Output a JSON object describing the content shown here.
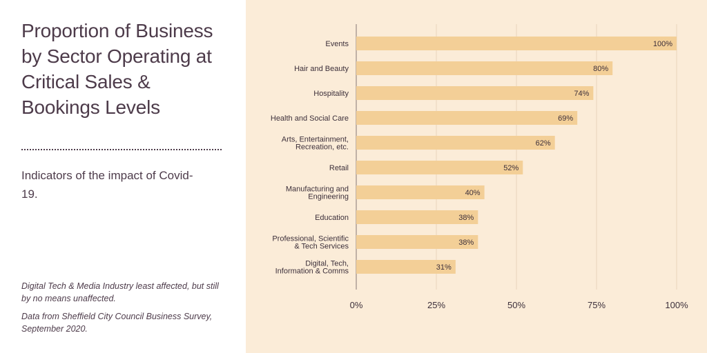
{
  "header": {
    "title": "Proportion of Business by Sector Operating at Critical Sales & Bookings Levels",
    "subtitle": "Indicators of the impact of Covid-19."
  },
  "notes": {
    "insight": "Digital Tech & Media Industry least affected, but still by no means unaffected.",
    "source": "Data from Sheffield City Council Business Survey, September 2020."
  },
  "colors": {
    "bar": "#f3cf97",
    "grid": "#e9d5bd",
    "axis": "#9a8a86",
    "background": "#fbecd8"
  },
  "chart_data": {
    "type": "bar",
    "orientation": "horizontal",
    "categories": [
      [
        "Events"
      ],
      [
        "Hair and Beauty"
      ],
      [
        "Hospitality"
      ],
      [
        "Health and Social Care"
      ],
      [
        "Arts, Entertainment,",
        "Recreation, etc."
      ],
      [
        "Retail"
      ],
      [
        "Manufacturing and",
        "Engineering"
      ],
      [
        "Education"
      ],
      [
        "Professional, Scientific",
        "& Tech Services"
      ],
      [
        "Digital, Tech,",
        "Information & Comms"
      ]
    ],
    "values": [
      100,
      80,
      74,
      69,
      62,
      52,
      40,
      38,
      38,
      31
    ],
    "value_labels": [
      "100%",
      "80%",
      "74%",
      "69%",
      "62%",
      "52%",
      "40%",
      "38%",
      "38%",
      "31%"
    ],
    "xlim": [
      0,
      100
    ],
    "xticks": [
      0,
      25,
      50,
      75,
      100
    ],
    "xtick_labels": [
      "0%",
      "25%",
      "50%",
      "75%",
      "100%"
    ],
    "grid": "vertical",
    "legend": "none"
  }
}
